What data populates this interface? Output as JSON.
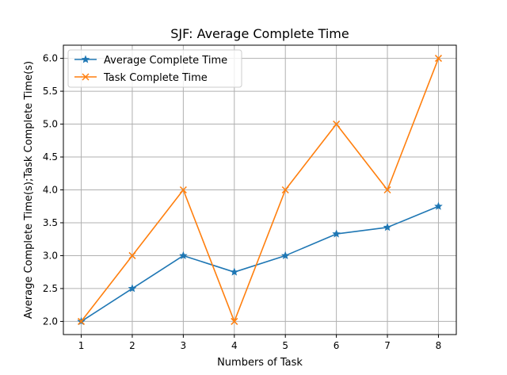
{
  "chart_data": {
    "type": "line",
    "title": "SJF: Average Complete Time",
    "xlabel": "Numbers of Task",
    "ylabel": "Average Complete Time(s);Task Complete Time(s)",
    "x": [
      1,
      2,
      3,
      4,
      5,
      6,
      7,
      8
    ],
    "xlim": [
      0.65,
      8.35
    ],
    "ylim": [
      1.8,
      6.2
    ],
    "x_ticks": [
      "1",
      "2",
      "3",
      "4",
      "5",
      "6",
      "7",
      "8"
    ],
    "y_ticks": [
      "2.0",
      "2.5",
      "3.0",
      "3.5",
      "4.0",
      "4.5",
      "5.0",
      "5.5",
      "6.0"
    ],
    "grid": true,
    "legend_position": "upper left",
    "series": [
      {
        "name": "Average Complete Time",
        "values": [
          2.0,
          2.5,
          3.0,
          2.75,
          3.0,
          3.33,
          3.43,
          3.75
        ],
        "color": "#1f77b4",
        "marker": "star"
      },
      {
        "name": "Task Complete Time",
        "values": [
          2.0,
          3.0,
          4.0,
          2.0,
          4.0,
          5.0,
          4.0,
          6.0
        ],
        "color": "#ff7f0e",
        "marker": "x"
      }
    ]
  }
}
